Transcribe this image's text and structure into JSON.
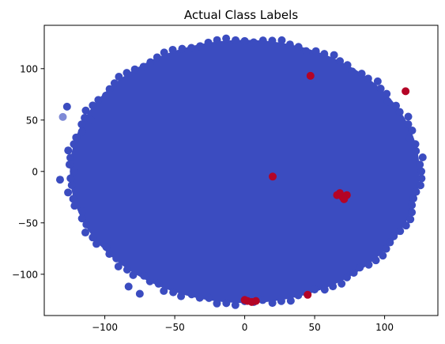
{
  "chart_data": {
    "type": "scatter",
    "title": "Actual Class Labels",
    "xlabel": "",
    "ylabel": "",
    "xlim": [
      -140,
      135
    ],
    "ylim": [
      -140,
      135
    ],
    "xticks": [
      -100,
      -50,
      0,
      50,
      100
    ],
    "yticks": [
      -100,
      -50,
      0,
      50,
      100
    ],
    "xtick_labels": [
      "−100",
      "−50",
      "0",
      "50",
      "100"
    ],
    "ytick_labels": [
      "−100",
      "−50",
      "0",
      "50",
      "100"
    ],
    "grid": false,
    "legend": "none",
    "colors": {
      "class_0": "#3b4cc0",
      "class_1": "#b40426"
    },
    "main_cluster": {
      "class": 0,
      "center": [
        0,
        0
      ],
      "radius_x": 125,
      "radius_y": 128
    },
    "series": [
      {
        "class": 0,
        "points": [
          [
            -127,
            63
          ],
          [
            -130,
            53
          ],
          [
            -132,
            -8
          ],
          [
            -83,
            -112
          ],
          [
            -75,
            -119
          ],
          [
            -110,
            50
          ]
        ]
      },
      {
        "class": 1,
        "points": [
          [
            115,
            78
          ],
          [
            47,
            93
          ],
          [
            20,
            -5
          ],
          [
            66,
            -23
          ],
          [
            70,
            -25
          ],
          [
            73,
            -23
          ],
          [
            71,
            -27
          ],
          [
            68,
            -21
          ],
          [
            2,
            -126
          ],
          [
            5,
            -127
          ],
          [
            8,
            -126
          ],
          [
            0,
            -125
          ],
          [
            45,
            -120
          ]
        ]
      }
    ]
  }
}
